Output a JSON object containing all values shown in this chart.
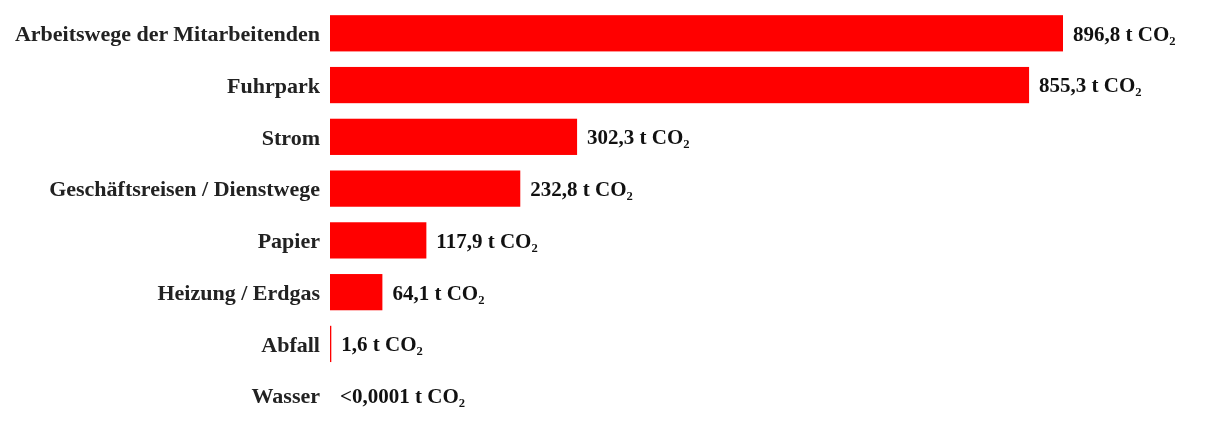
{
  "chart_data": {
    "type": "bar",
    "orientation": "horizontal",
    "categories": [
      "Arbeitswege der Mitarbeitenden",
      "Fuhrpark",
      "Strom",
      "Geschäftsreisen / Dienstwege",
      "Papier",
      "Heizung / Erdgas",
      "Abfall",
      "Wasser"
    ],
    "values": [
      896.8,
      855.3,
      302.3,
      232.8,
      117.9,
      64.1,
      1.6,
      0.0001
    ],
    "value_labels": [
      "896,8 t CO₂",
      "855,3 t CO₂",
      "302,3 t CO₂",
      "232,8 t CO₂",
      "117,9 t CO₂",
      "64,1 t CO₂",
      "1,6 t CO₂",
      "<0,0001 t CO₂"
    ],
    "color": "#ff0000"
  }
}
